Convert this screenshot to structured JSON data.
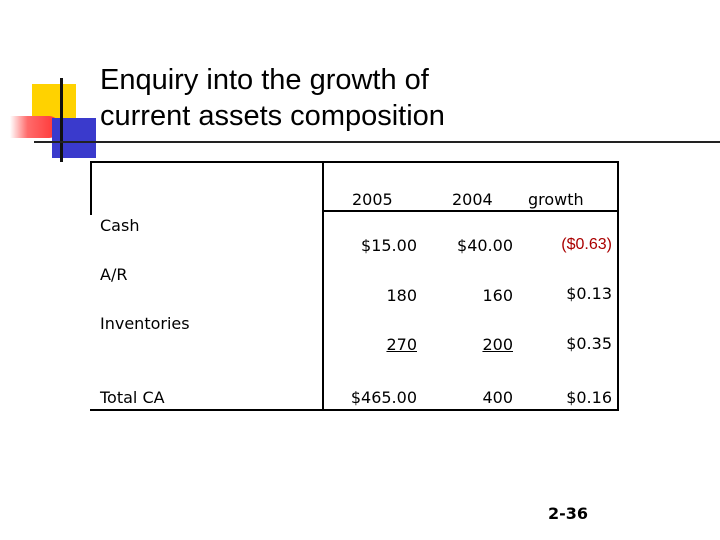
{
  "title": {
    "line1": "Enquiry into the growth of",
    "line2": "current assets composition"
  },
  "table": {
    "headers": [
      "2005",
      "2004",
      "growth"
    ],
    "rows": [
      {
        "label": "Cash",
        "y2005": "$15.00",
        "y2004": "$40.00",
        "growth": "($0.63)"
      },
      {
        "label": "A/R",
        "y2005": "180",
        "y2004": "160",
        "growth": "$0.13"
      },
      {
        "label": "Inventories",
        "y2005": "270",
        "y2004": "200",
        "growth": "$0.35"
      },
      {
        "label": "Total CA",
        "y2005": "$465.00",
        "y2004": "400",
        "growth": "$0.16"
      }
    ]
  },
  "page_number": "2-36",
  "colors": {
    "accent_yellow": "#ffd200",
    "accent_blue": "#3a3acc",
    "accent_red": "#ff3030",
    "negative": "#aa0000"
  }
}
